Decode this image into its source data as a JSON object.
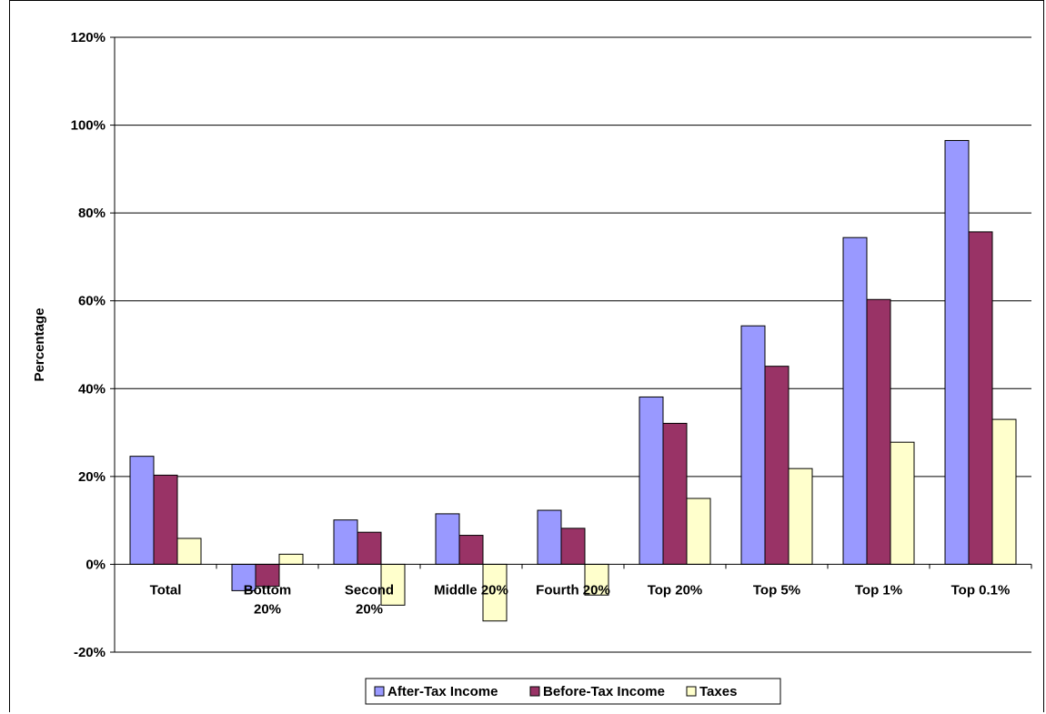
{
  "chart_data": {
    "type": "bar",
    "title": "",
    "xlabel": "",
    "ylabel": "Percentage",
    "ylim": [
      -20,
      120
    ],
    "yticks": [
      -20,
      0,
      20,
      40,
      60,
      80,
      100,
      120
    ],
    "ytick_labels": [
      "-20%",
      "0%",
      "20%",
      "40%",
      "60%",
      "80%",
      "100%",
      "120%"
    ],
    "grid": true,
    "legend_position": "bottom",
    "categories": [
      [
        "Total"
      ],
      [
        "Bottom",
        "20%"
      ],
      [
        "Second",
        "20%"
      ],
      [
        "Middle 20%"
      ],
      [
        "Fourth 20%"
      ],
      [
        "Top 20%"
      ],
      [
        "Top 5%"
      ],
      [
        "Top 1%"
      ],
      [
        "Top 0.1%"
      ]
    ],
    "series": [
      {
        "name": "After-Tax Income",
        "color": "#9999ff",
        "values": [
          24.6,
          -6.0,
          10.1,
          11.5,
          12.3,
          38.1,
          54.3,
          74.4,
          96.5
        ]
      },
      {
        "name": "Before-Tax Income",
        "color": "#993366",
        "values": [
          20.3,
          -5.0,
          7.3,
          6.6,
          8.2,
          32.1,
          45.1,
          60.3,
          75.7
        ]
      },
      {
        "name": "Taxes",
        "color": "#ffffcc",
        "values": [
          5.9,
          2.3,
          -9.3,
          -12.9,
          -7.0,
          15.0,
          21.8,
          27.8,
          33.0
        ]
      }
    ]
  }
}
